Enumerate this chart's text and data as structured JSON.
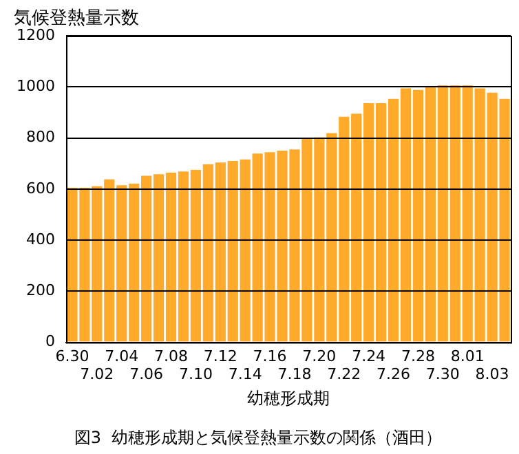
{
  "chart_data": {
    "type": "bar",
    "title": "図3  幼穂形成期と気候登熱量示数の関係（酒田）",
    "xlabel": "幼穂形成期",
    "ylabel": "気候登熱量示数",
    "categories": [
      "6.30",
      null,
      "7.02",
      null,
      "7.04",
      null,
      "7.06",
      null,
      "7.08",
      null,
      "7.10",
      null,
      "7.12",
      null,
      "7.14",
      null,
      "7.16",
      null,
      "7.18",
      null,
      "7.20",
      null,
      "7.22",
      null,
      "7.24",
      null,
      "7.26",
      null,
      "7.28",
      null,
      "7.30",
      null,
      "8.01",
      null,
      "8.03",
      null
    ],
    "values": [
      605,
      605,
      611,
      638,
      615,
      621,
      652,
      658,
      664,
      669,
      675,
      697,
      704,
      710,
      716,
      739,
      744,
      750,
      755,
      796,
      802,
      819,
      883,
      895,
      936,
      936,
      953,
      994,
      988,
      1000,
      1006,
      1006,
      1006,
      994,
      977,
      953
    ],
    "color": "#ffaa2a",
    "ylim": [
      0,
      1200
    ],
    "yticks": [
      0,
      200,
      400,
      600,
      800,
      1000,
      1200
    ],
    "grid": "y",
    "legend": false
  }
}
